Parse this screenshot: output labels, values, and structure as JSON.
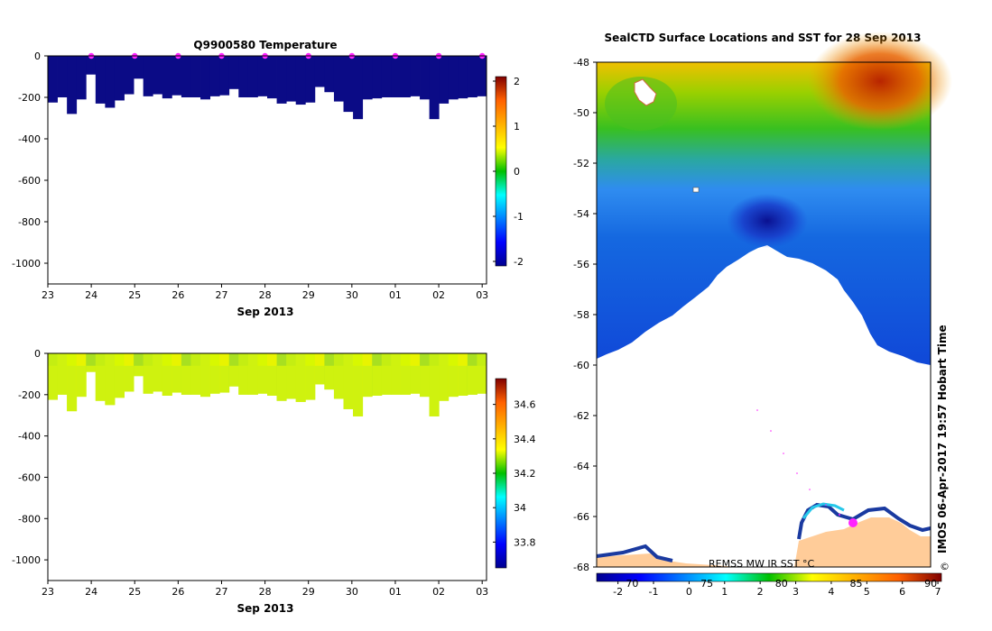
{
  "chart_data": [
    {
      "type": "heatmap",
      "title": "Q9900580  Temperature",
      "variable": "temperature",
      "xlabel": "Sep 2013",
      "xticks": [
        "23",
        "24",
        "25",
        "26",
        "27",
        "28",
        "29",
        "30",
        "01",
        "02",
        "03"
      ],
      "xlim": [
        23,
        33.1
      ],
      "ylim": [
        -1100,
        0
      ],
      "yticks": [
        "0",
        "-200",
        "-400",
        "-600",
        "-800",
        "-1000"
      ],
      "colorbar": {
        "range": [
          -2.1,
          2.1
        ],
        "ticks": [
          "2",
          "1",
          "0",
          "-1",
          "-2"
        ]
      },
      "profiles": {
        "start": 23,
        "end": 33.1,
        "depths": [
          -225,
          -200,
          -280,
          -210,
          -90,
          -230,
          -250,
          -215,
          -185,
          -110,
          -195,
          -185,
          -205,
          -190,
          -200,
          -200,
          -210,
          -195,
          -190,
          -160,
          -200,
          -200,
          -195,
          -205,
          -230,
          -220,
          -235,
          -225,
          -150,
          -175,
          -220,
          -270,
          -305,
          -210,
          -205,
          -200,
          -200,
          -200,
          -195,
          -210,
          -305,
          -230,
          -210,
          -205,
          -200,
          -195
        ]
      },
      "fill_value": -2.0,
      "surface_markers": [
        24,
        25,
        26,
        27,
        28,
        29,
        30,
        31,
        32,
        33
      ]
    },
    {
      "type": "heatmap",
      "title": "",
      "variable": "salinity",
      "xlabel": "Sep 2013",
      "xticks": [
        "23",
        "24",
        "25",
        "26",
        "27",
        "28",
        "29",
        "30",
        "01",
        "02",
        "03"
      ],
      "xlim": [
        23,
        33.1
      ],
      "ylim": [
        -1100,
        0
      ],
      "yticks": [
        "0",
        "-200",
        "-400",
        "-600",
        "-800",
        "-1000"
      ],
      "colorbar": {
        "range": [
          33.65,
          34.75
        ],
        "ticks": [
          "34.6",
          "34.4",
          "34.2",
          "34",
          "33.8"
        ]
      },
      "profiles": {
        "start": 23,
        "end": 33.1,
        "depths": [
          -225,
          -200,
          -280,
          -210,
          -90,
          -230,
          -250,
          -215,
          -185,
          -110,
          -195,
          -185,
          -205,
          -190,
          -200,
          -200,
          -210,
          -195,
          -190,
          -160,
          -200,
          -200,
          -195,
          -205,
          -230,
          -220,
          -235,
          -225,
          -150,
          -175,
          -220,
          -270,
          -305,
          -210,
          -205,
          -200,
          -200,
          -200,
          -195,
          -210,
          -305,
          -230,
          -210,
          -205,
          -200,
          -195
        ]
      },
      "fill_value": 34.45
    },
    {
      "type": "heatmap",
      "title": "SealCTD Surface Locations and SST for 28 Sep 2013",
      "variable": "sea surface temperature",
      "ylim": [
        -68,
        -48
      ],
      "yticks": [
        "-48",
        "-50",
        "-52",
        "-54",
        "-56",
        "-58",
        "-60",
        "-62",
        "-64",
        "-66",
        "-68"
      ],
      "colorbar": {
        "range": [
          -2.6,
          7.1
        ],
        "ticks": [
          "-2",
          "-1",
          "0",
          "1",
          "2",
          "3",
          "4",
          "5",
          "6",
          "7"
        ],
        "secondary_ticks": [
          "70",
          "75",
          "80",
          "85",
          "90"
        ]
      },
      "source_label": "REMSS MW IR SST °C"
    }
  ],
  "side_stamp": "IMOS 06-Apr-2017 19:57 Hobart Time",
  "copyright": "©",
  "colors": {
    "deep_navy": "#0b0b86",
    "salinity_fill": "#cff20f",
    "land": "#ffcc99",
    "marker": "#ff22ff"
  }
}
